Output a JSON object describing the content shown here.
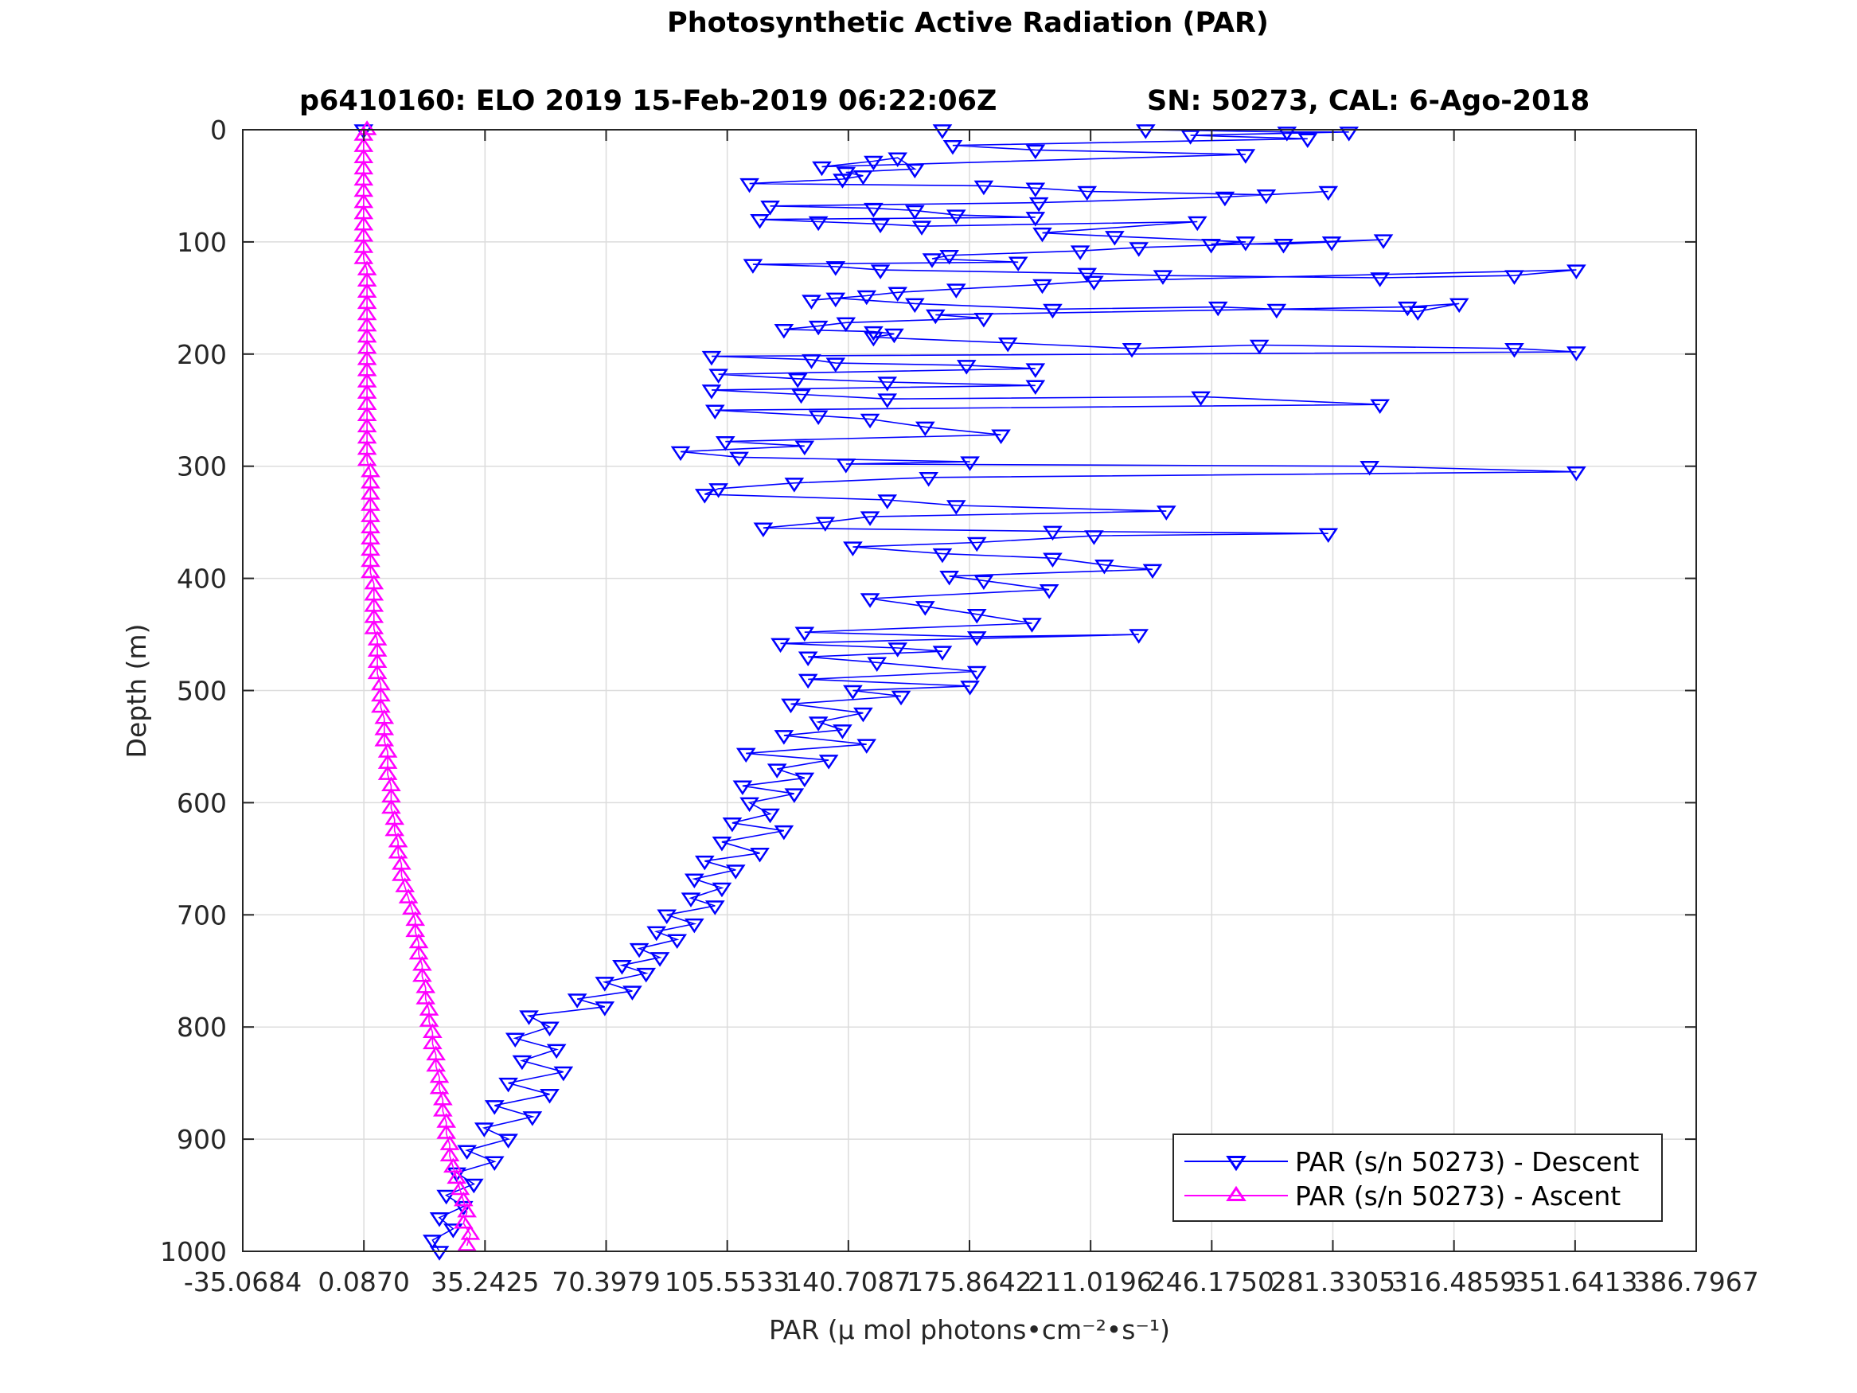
{
  "chart_data": {
    "type": "line",
    "title": "Photosynthetic Active Radiation (PAR)",
    "subtitle_left": "p6410160: ELO 2019 15-Feb-2019 06:22:06Z",
    "subtitle_right": "SN: 50273, CAL: 6-Ago-2018",
    "xlabel": "PAR (μ mol photons•cm⁻²•s⁻¹)",
    "ylabel": "Depth (m)",
    "xlim": [
      -35.0684,
      386.7967
    ],
    "ylim": [
      0,
      1000
    ],
    "y_reversed": true,
    "grid": true,
    "legend_position": "bottom-right",
    "x_ticks": [
      "-35.0684",
      "0.0870",
      "35.2425",
      "70.3979",
      "105.5533",
      "140.7087",
      "175.8642",
      "211.0196",
      "246.1750",
      "281.3305",
      "316.4859",
      "351.6413",
      "386.7967"
    ],
    "y_ticks": [
      "0",
      "100",
      "200",
      "300",
      "400",
      "500",
      "600",
      "700",
      "800",
      "900",
      "1000"
    ],
    "series": [
      {
        "name": "PAR (s/n 50273) - Descent",
        "color": "#0000ff",
        "marker": "triangle-down",
        "points": [
          [
            0,
            0
          ],
          [
            168,
            0
          ],
          [
            227,
            0
          ],
          [
            268,
            2
          ],
          [
            286,
            2
          ],
          [
            240,
            5
          ],
          [
            274,
            8
          ],
          [
            171,
            14
          ],
          [
            195,
            18
          ],
          [
            256,
            22
          ],
          [
            133,
            33
          ],
          [
            148,
            28
          ],
          [
            155,
            25
          ],
          [
            160,
            35
          ],
          [
            140,
            38
          ],
          [
            145,
            41
          ],
          [
            139,
            44
          ],
          [
            112,
            48
          ],
          [
            180,
            50
          ],
          [
            195,
            52
          ],
          [
            210,
            55
          ],
          [
            262,
            58
          ],
          [
            280,
            55
          ],
          [
            250,
            60
          ],
          [
            196,
            65
          ],
          [
            118,
            68
          ],
          [
            148,
            70
          ],
          [
            160,
            72
          ],
          [
            172,
            76
          ],
          [
            195,
            78
          ],
          [
            115,
            80
          ],
          [
            132,
            82
          ],
          [
            150,
            84
          ],
          [
            162,
            86
          ],
          [
            242,
            82
          ],
          [
            197,
            92
          ],
          [
            218,
            95
          ],
          [
            256,
            100
          ],
          [
            246,
            102
          ],
          [
            267,
            102
          ],
          [
            281,
            100
          ],
          [
            296,
            98
          ],
          [
            225,
            105
          ],
          [
            208,
            108
          ],
          [
            170,
            112
          ],
          [
            165,
            115
          ],
          [
            190,
            118
          ],
          [
            113,
            120
          ],
          [
            137,
            122
          ],
          [
            150,
            125
          ],
          [
            210,
            128
          ],
          [
            232,
            130
          ],
          [
            295,
            132
          ],
          [
            334,
            130
          ],
          [
            352,
            125
          ],
          [
            212,
            135
          ],
          [
            197,
            138
          ],
          [
            172,
            142
          ],
          [
            155,
            145
          ],
          [
            146,
            148
          ],
          [
            130,
            152
          ],
          [
            137,
            150
          ],
          [
            160,
            155
          ],
          [
            200,
            160
          ],
          [
            248,
            158
          ],
          [
            265,
            160
          ],
          [
            306,
            162
          ],
          [
            318,
            155
          ],
          [
            303,
            158
          ],
          [
            166,
            165
          ],
          [
            180,
            168
          ],
          [
            140,
            172
          ],
          [
            132,
            175
          ],
          [
            122,
            178
          ],
          [
            148,
            180
          ],
          [
            154,
            182
          ],
          [
            148,
            185
          ],
          [
            187,
            190
          ],
          [
            223,
            195
          ],
          [
            260,
            192
          ],
          [
            334,
            195
          ],
          [
            352,
            198
          ],
          [
            101,
            202
          ],
          [
            130,
            205
          ],
          [
            137,
            208
          ],
          [
            175,
            210
          ],
          [
            195,
            213
          ],
          [
            103,
            218
          ],
          [
            126,
            222
          ],
          [
            152,
            225
          ],
          [
            195,
            228
          ],
          [
            101,
            232
          ],
          [
            127,
            236
          ],
          [
            152,
            240
          ],
          [
            243,
            238
          ],
          [
            295,
            245
          ],
          [
            102,
            250
          ],
          [
            132,
            255
          ],
          [
            147,
            258
          ],
          [
            163,
            265
          ],
          [
            185,
            272
          ],
          [
            105,
            278
          ],
          [
            128,
            282
          ],
          [
            92,
            287
          ],
          [
            109,
            292
          ],
          [
            176,
            296
          ],
          [
            140,
            298
          ],
          [
            292,
            300
          ],
          [
            352,
            305
          ],
          [
            164,
            310
          ],
          [
            125,
            315
          ],
          [
            103,
            320
          ],
          [
            99,
            325
          ],
          [
            152,
            330
          ],
          [
            172,
            335
          ],
          [
            233,
            340
          ],
          [
            147,
            345
          ],
          [
            134,
            350
          ],
          [
            116,
            355
          ],
          [
            200,
            358
          ],
          [
            280,
            360
          ],
          [
            212,
            362
          ],
          [
            178,
            368
          ],
          [
            142,
            372
          ],
          [
            168,
            378
          ],
          [
            200,
            382
          ],
          [
            215,
            388
          ],
          [
            229,
            392
          ],
          [
            170,
            398
          ],
          [
            180,
            402
          ],
          [
            199,
            410
          ],
          [
            147,
            418
          ],
          [
            163,
            425
          ],
          [
            178,
            432
          ],
          [
            194,
            440
          ],
          [
            128,
            448
          ],
          [
            178,
            452
          ],
          [
            225,
            450
          ],
          [
            121,
            458
          ],
          [
            155,
            462
          ],
          [
            168,
            465
          ],
          [
            129,
            470
          ],
          [
            149,
            475
          ],
          [
            178,
            483
          ],
          [
            129,
            490
          ],
          [
            176,
            496
          ],
          [
            142,
            500
          ],
          [
            156,
            505
          ],
          [
            124,
            512
          ],
          [
            145,
            520
          ],
          [
            132,
            528
          ],
          [
            139,
            535
          ],
          [
            122,
            540
          ],
          [
            146,
            548
          ],
          [
            111,
            556
          ],
          [
            135,
            562
          ],
          [
            120,
            570
          ],
          [
            128,
            578
          ],
          [
            110,
            585
          ],
          [
            125,
            592
          ],
          [
            112,
            600
          ],
          [
            118,
            610
          ],
          [
            107,
            618
          ],
          [
            122,
            625
          ],
          [
            104,
            635
          ],
          [
            115,
            645
          ],
          [
            99,
            652
          ],
          [
            108,
            660
          ],
          [
            96,
            668
          ],
          [
            104,
            676
          ],
          [
            95,
            685
          ],
          [
            102,
            692
          ],
          [
            88,
            700
          ],
          [
            96,
            708
          ],
          [
            85,
            715
          ],
          [
            91,
            722
          ],
          [
            80,
            730
          ],
          [
            86,
            738
          ],
          [
            75,
            745
          ],
          [
            82,
            752
          ],
          [
            70,
            760
          ],
          [
            78,
            768
          ],
          [
            62,
            775
          ],
          [
            70,
            782
          ],
          [
            48,
            790
          ],
          [
            54,
            800
          ],
          [
            44,
            810
          ],
          [
            56,
            820
          ],
          [
            46,
            830
          ],
          [
            58,
            840
          ],
          [
            42,
            850
          ],
          [
            54,
            860
          ],
          [
            38,
            870
          ],
          [
            49,
            880
          ],
          [
            35,
            890
          ],
          [
            42,
            900
          ],
          [
            30,
            910
          ],
          [
            38,
            920
          ],
          [
            27,
            930
          ],
          [
            32,
            940
          ],
          [
            24,
            950
          ],
          [
            29,
            960
          ],
          [
            22,
            970
          ],
          [
            26,
            980
          ],
          [
            20,
            990
          ],
          [
            22,
            1000
          ]
        ]
      },
      {
        "name": "PAR (s/n 50273) - Ascent",
        "color": "#ff00ff",
        "marker": "triangle-up",
        "points": [
          [
            30,
            995
          ],
          [
            31,
            985
          ],
          [
            29,
            975
          ],
          [
            30,
            965
          ],
          [
            29,
            955
          ],
          [
            28,
            945
          ],
          [
            27,
            935
          ],
          [
            26,
            925
          ],
          [
            25,
            915
          ],
          [
            25,
            905
          ],
          [
            24,
            895
          ],
          [
            24,
            885
          ],
          [
            23,
            875
          ],
          [
            23,
            865
          ],
          [
            22,
            855
          ],
          [
            22,
            845
          ],
          [
            21,
            835
          ],
          [
            21,
            825
          ],
          [
            20,
            815
          ],
          [
            20,
            805
          ],
          [
            19,
            795
          ],
          [
            19,
            785
          ],
          [
            18,
            775
          ],
          [
            18,
            765
          ],
          [
            17,
            755
          ],
          [
            17,
            745
          ],
          [
            16,
            735
          ],
          [
            16,
            725
          ],
          [
            15,
            715
          ],
          [
            15,
            705
          ],
          [
            14,
            695
          ],
          [
            13,
            685
          ],
          [
            12,
            675
          ],
          [
            11,
            665
          ],
          [
            11,
            655
          ],
          [
            10,
            645
          ],
          [
            10,
            635
          ],
          [
            9,
            625
          ],
          [
            9,
            615
          ],
          [
            8,
            605
          ],
          [
            8,
            595
          ],
          [
            8,
            585
          ],
          [
            7,
            575
          ],
          [
            7,
            565
          ],
          [
            7,
            555
          ],
          [
            6,
            545
          ],
          [
            6,
            535
          ],
          [
            6,
            525
          ],
          [
            5,
            515
          ],
          [
            5,
            505
          ],
          [
            5,
            495
          ],
          [
            4,
            485
          ],
          [
            4,
            475
          ],
          [
            4,
            465
          ],
          [
            4,
            455
          ],
          [
            3,
            445
          ],
          [
            3,
            435
          ],
          [
            3,
            425
          ],
          [
            3,
            415
          ],
          [
            3,
            405
          ],
          [
            2,
            395
          ],
          [
            2,
            385
          ],
          [
            2,
            375
          ],
          [
            2,
            365
          ],
          [
            2,
            355
          ],
          [
            2,
            345
          ],
          [
            2,
            335
          ],
          [
            2,
            325
          ],
          [
            2,
            315
          ],
          [
            2,
            305
          ],
          [
            1,
            295
          ],
          [
            1,
            285
          ],
          [
            1,
            275
          ],
          [
            1,
            265
          ],
          [
            1,
            255
          ],
          [
            1,
            245
          ],
          [
            1,
            235
          ],
          [
            1,
            225
          ],
          [
            1,
            215
          ],
          [
            1,
            205
          ],
          [
            1,
            195
          ],
          [
            1,
            185
          ],
          [
            1,
            175
          ],
          [
            1,
            165
          ],
          [
            1,
            155
          ],
          [
            1,
            145
          ],
          [
            1,
            135
          ],
          [
            1,
            125
          ],
          [
            0,
            115
          ],
          [
            0,
            105
          ],
          [
            0,
            95
          ],
          [
            0,
            85
          ],
          [
            0,
            75
          ],
          [
            0,
            65
          ],
          [
            0,
            55
          ],
          [
            0,
            45
          ],
          [
            0,
            35
          ],
          [
            0,
            25
          ],
          [
            0,
            15
          ],
          [
            0,
            5
          ],
          [
            1,
            0
          ]
        ]
      }
    ]
  }
}
